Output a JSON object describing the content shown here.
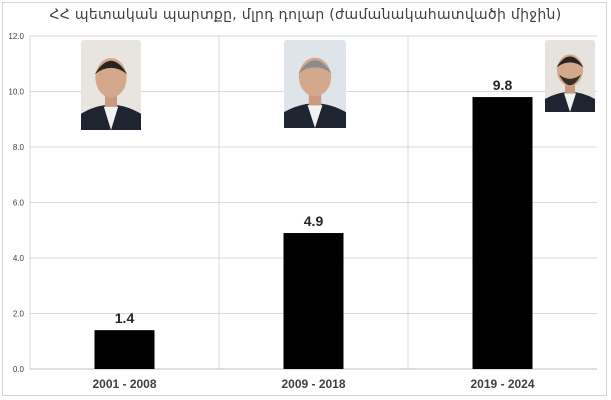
{
  "title": "ՀՀ պետական պարտքը, մլրդ դոլար (ժամանակահատվածի միջին)",
  "colors": {
    "bar": "#000000",
    "grid": "#d9d9d9",
    "axis_text": "#404040",
    "label_text": "#262626"
  },
  "chart_data": {
    "type": "bar",
    "title": "ՀՀ պետական պարտքը, մլրդ դոլար (ժամանակահատվածի միջին)",
    "categories": [
      "2001 - 2008",
      "2009 - 2018",
      "2019 - 2024"
    ],
    "values": [
      1.4,
      4.9,
      9.8
    ],
    "data_labels": [
      "1.4",
      "4.9",
      "9.8"
    ],
    "xlabel": "",
    "ylabel": "",
    "ylim": [
      0,
      12
    ],
    "yticks": [
      "0.0",
      "2.0",
      "4.0",
      "6.0",
      "8.0",
      "10.0",
      "12.0"
    ],
    "grid": true,
    "legend": "none",
    "images": [
      "portrait-photo",
      "portrait-photo",
      "portrait-photo"
    ]
  }
}
